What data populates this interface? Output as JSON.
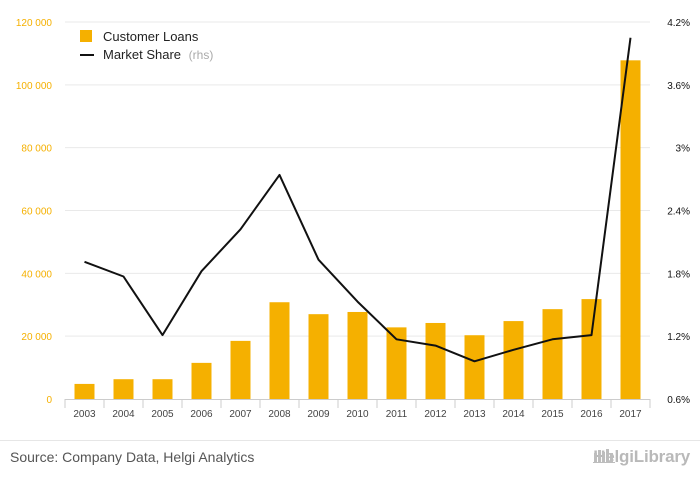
{
  "chart_data": {
    "type": "bar",
    "categories": [
      "2003",
      "2004",
      "2005",
      "2006",
      "2007",
      "2008",
      "2009",
      "2010",
      "2011",
      "2012",
      "2013",
      "2014",
      "2015",
      "2016",
      "2017"
    ],
    "series": [
      {
        "name": "Customer Loans",
        "type": "bar",
        "axis": "left",
        "color": "#f5b000",
        "values": [
          4800,
          6300,
          6300,
          11500,
          18500,
          30800,
          27000,
          27700,
          22800,
          24200,
          20300,
          24800,
          28600,
          31800,
          107800
        ]
      },
      {
        "name": "Market Share",
        "type": "line",
        "axis": "right",
        "color": "#111111",
        "values": [
          1.91,
          1.77,
          1.21,
          1.82,
          2.22,
          2.74,
          1.93,
          1.53,
          1.17,
          1.11,
          0.96,
          1.07,
          1.17,
          1.21,
          4.05
        ]
      }
    ],
    "legend": {
      "position": "top-left",
      "items": [
        {
          "label": "Customer Loans",
          "suffix": ""
        },
        {
          "label": "Market Share",
          "suffix": "(rhs)"
        }
      ]
    },
    "y_left": {
      "min": 0,
      "max": 120000,
      "ticks": [
        0,
        20000,
        40000,
        60000,
        80000,
        100000,
        120000
      ],
      "tick_labels": [
        "0",
        "20 000",
        "40 000",
        "60 000",
        "80 000",
        "100 000",
        "120 000"
      ],
      "label_color": "#f5b000"
    },
    "y_right": {
      "min": 0.6,
      "max": 4.2,
      "ticks": [
        0.6,
        1.2,
        1.8,
        2.4,
        3.0,
        3.6,
        4.2
      ],
      "tick_labels": [
        "0.6%",
        "1.2%",
        "1.8%",
        "2.4%",
        "3%",
        "3.6%",
        "4.2%"
      ],
      "label_color": "#111111"
    },
    "grid": true
  },
  "footer": {
    "source": "Source: Company Data, Helgi Analytics",
    "brand": "HelgiLibrary"
  }
}
